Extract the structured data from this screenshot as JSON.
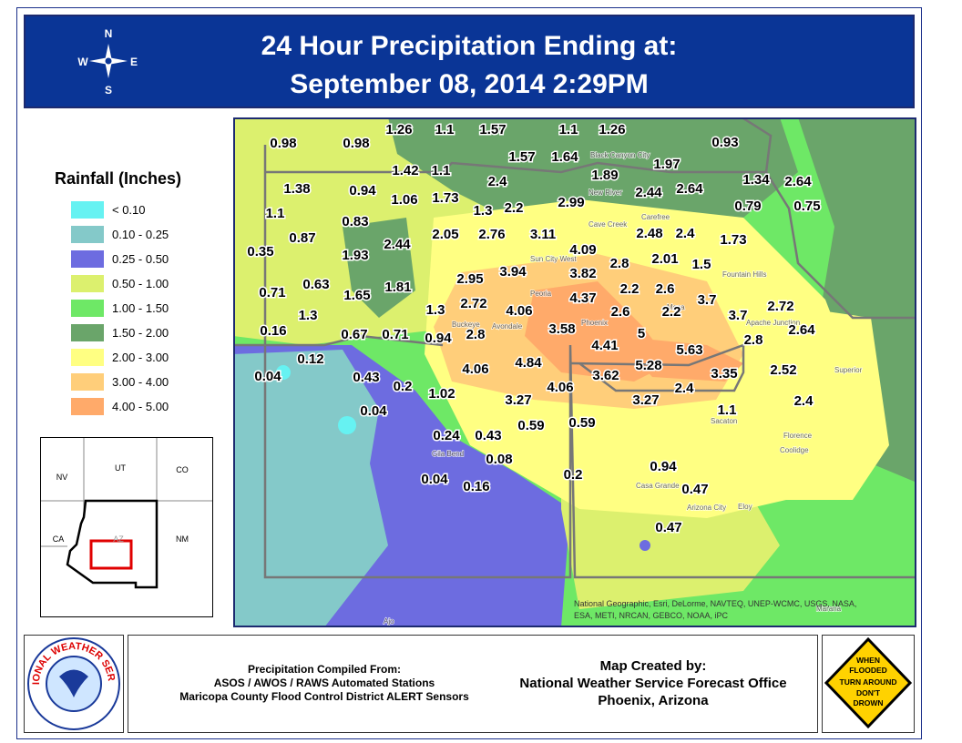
{
  "header": {
    "title_line1": "24 Hour Precipitation Ending at:",
    "title_line2": "September 08, 2014 2:29PM",
    "compass": {
      "n": "N",
      "s": "S",
      "e": "E",
      "w": "W"
    }
  },
  "legend": {
    "title": "Rainfall (Inches)",
    "items": [
      {
        "label": "< 0.10",
        "color": "#66f2f2"
      },
      {
        "label": "0.10 - 0.25",
        "color": "#84c9c9"
      },
      {
        "label": "0.25 - 0.50",
        "color": "#6d6ce0"
      },
      {
        "label": "0.50 - 1.00",
        "color": "#dcf06e"
      },
      {
        "label": "1.00 - 1.50",
        "color": "#6ee866"
      },
      {
        "label": "1.50 - 2.00",
        "color": "#6aa56a"
      },
      {
        "label": "2.00 - 3.00",
        "color": "#ffff82"
      },
      {
        "label": "3.00 - 4.00",
        "color": "#ffce7a"
      },
      {
        "label": "4.00 - 5.00",
        "color": "#ffaa6a"
      }
    ]
  },
  "inset": {
    "states": [
      "NV",
      "UT",
      "CO",
      "CA",
      "AZ",
      "NM"
    ]
  },
  "map": {
    "rainfall_labels": [
      "1.26",
      "1.1",
      "1.57",
      "1.1",
      "1.26",
      "0.98",
      "0.98",
      "0.93",
      "1.57",
      "1.64",
      "1.97",
      "1.42",
      "1.1",
      "1.89",
      "2.4",
      "1.34",
      "2.64",
      "1.38",
      "0.94",
      "2.44",
      "2.64",
      "1.06",
      "1.73",
      "2.99",
      "0.79",
      "0.75",
      "1.3",
      "2.2",
      "1.1",
      "0.83",
      "0.87",
      "2.05",
      "2.76",
      "3.11",
      "2.48",
      "2.4",
      "1.73",
      "2.44",
      "4.09",
      "0.35",
      "1.93",
      "2.8",
      "2.01",
      "1.5",
      "3.94",
      "3.82",
      "2.95",
      "0.63",
      "1.81",
      "2.2",
      "2.6",
      "0.71",
      "1.65",
      "4.37",
      "3.7",
      "2.72",
      "2.72",
      "1.3",
      "4.06",
      "2.6",
      "2.2",
      "1.3",
      "3.7",
      "3.58",
      "2.64",
      "0.16",
      "0.67",
      "0.71",
      "0.94",
      "2.8",
      "5",
      "2.8",
      "4.41",
      "5.63",
      "0.12",
      "4.84",
      "5.28",
      "4.06",
      "2.52",
      "3.35",
      "0.04",
      "0.43",
      "3.62",
      "0.2",
      "4.06",
      "2.4",
      "1.02",
      "3.27",
      "3.27",
      "2.4",
      "0.04",
      "1.1",
      "0.59",
      "0.59",
      "0.24",
      "0.43",
      "0.08",
      "0.94",
      "0.2",
      "0.04",
      "0.16",
      "0.47",
      "0.47"
    ],
    "place_names": [
      "Black Canyon City",
      "New River",
      "Cave Creek",
      "Carefree",
      "Sun City West",
      "Peoria",
      "Phoenix",
      "Mesa",
      "Avondale",
      "Buckeye",
      "Gila Bend",
      "Fountain Hills",
      "Apache Junction",
      "Superior",
      "Florence",
      "Coolidge",
      "Sacaton",
      "Casa Grande",
      "Arizona City",
      "Eloy",
      "Marana",
      "Ajo"
    ],
    "attribution_line1": "National Geographic, Esri, DeLorme, NAVTEQ, UNEP-WCMC, USGS, NASA,",
    "attribution_line2": "ESA, METI, NRCAN, GEBCO, NOAA, iPC"
  },
  "footer": {
    "logo_text": "NATIONAL WEATHER SERVICE",
    "compiled": [
      "Precipitation Compiled From:",
      "ASOS / AWOS / RAWS Automated Stations",
      "Maricopa County Flood Control District ALERT Sensors"
    ],
    "created": [
      "Map Created by:",
      "National Weather Service Forecast Office",
      "Phoenix, Arizona"
    ],
    "sign": [
      "WHEN",
      "FLOODED",
      "TURN AROUND",
      "DON'T",
      "DROWN"
    ]
  }
}
